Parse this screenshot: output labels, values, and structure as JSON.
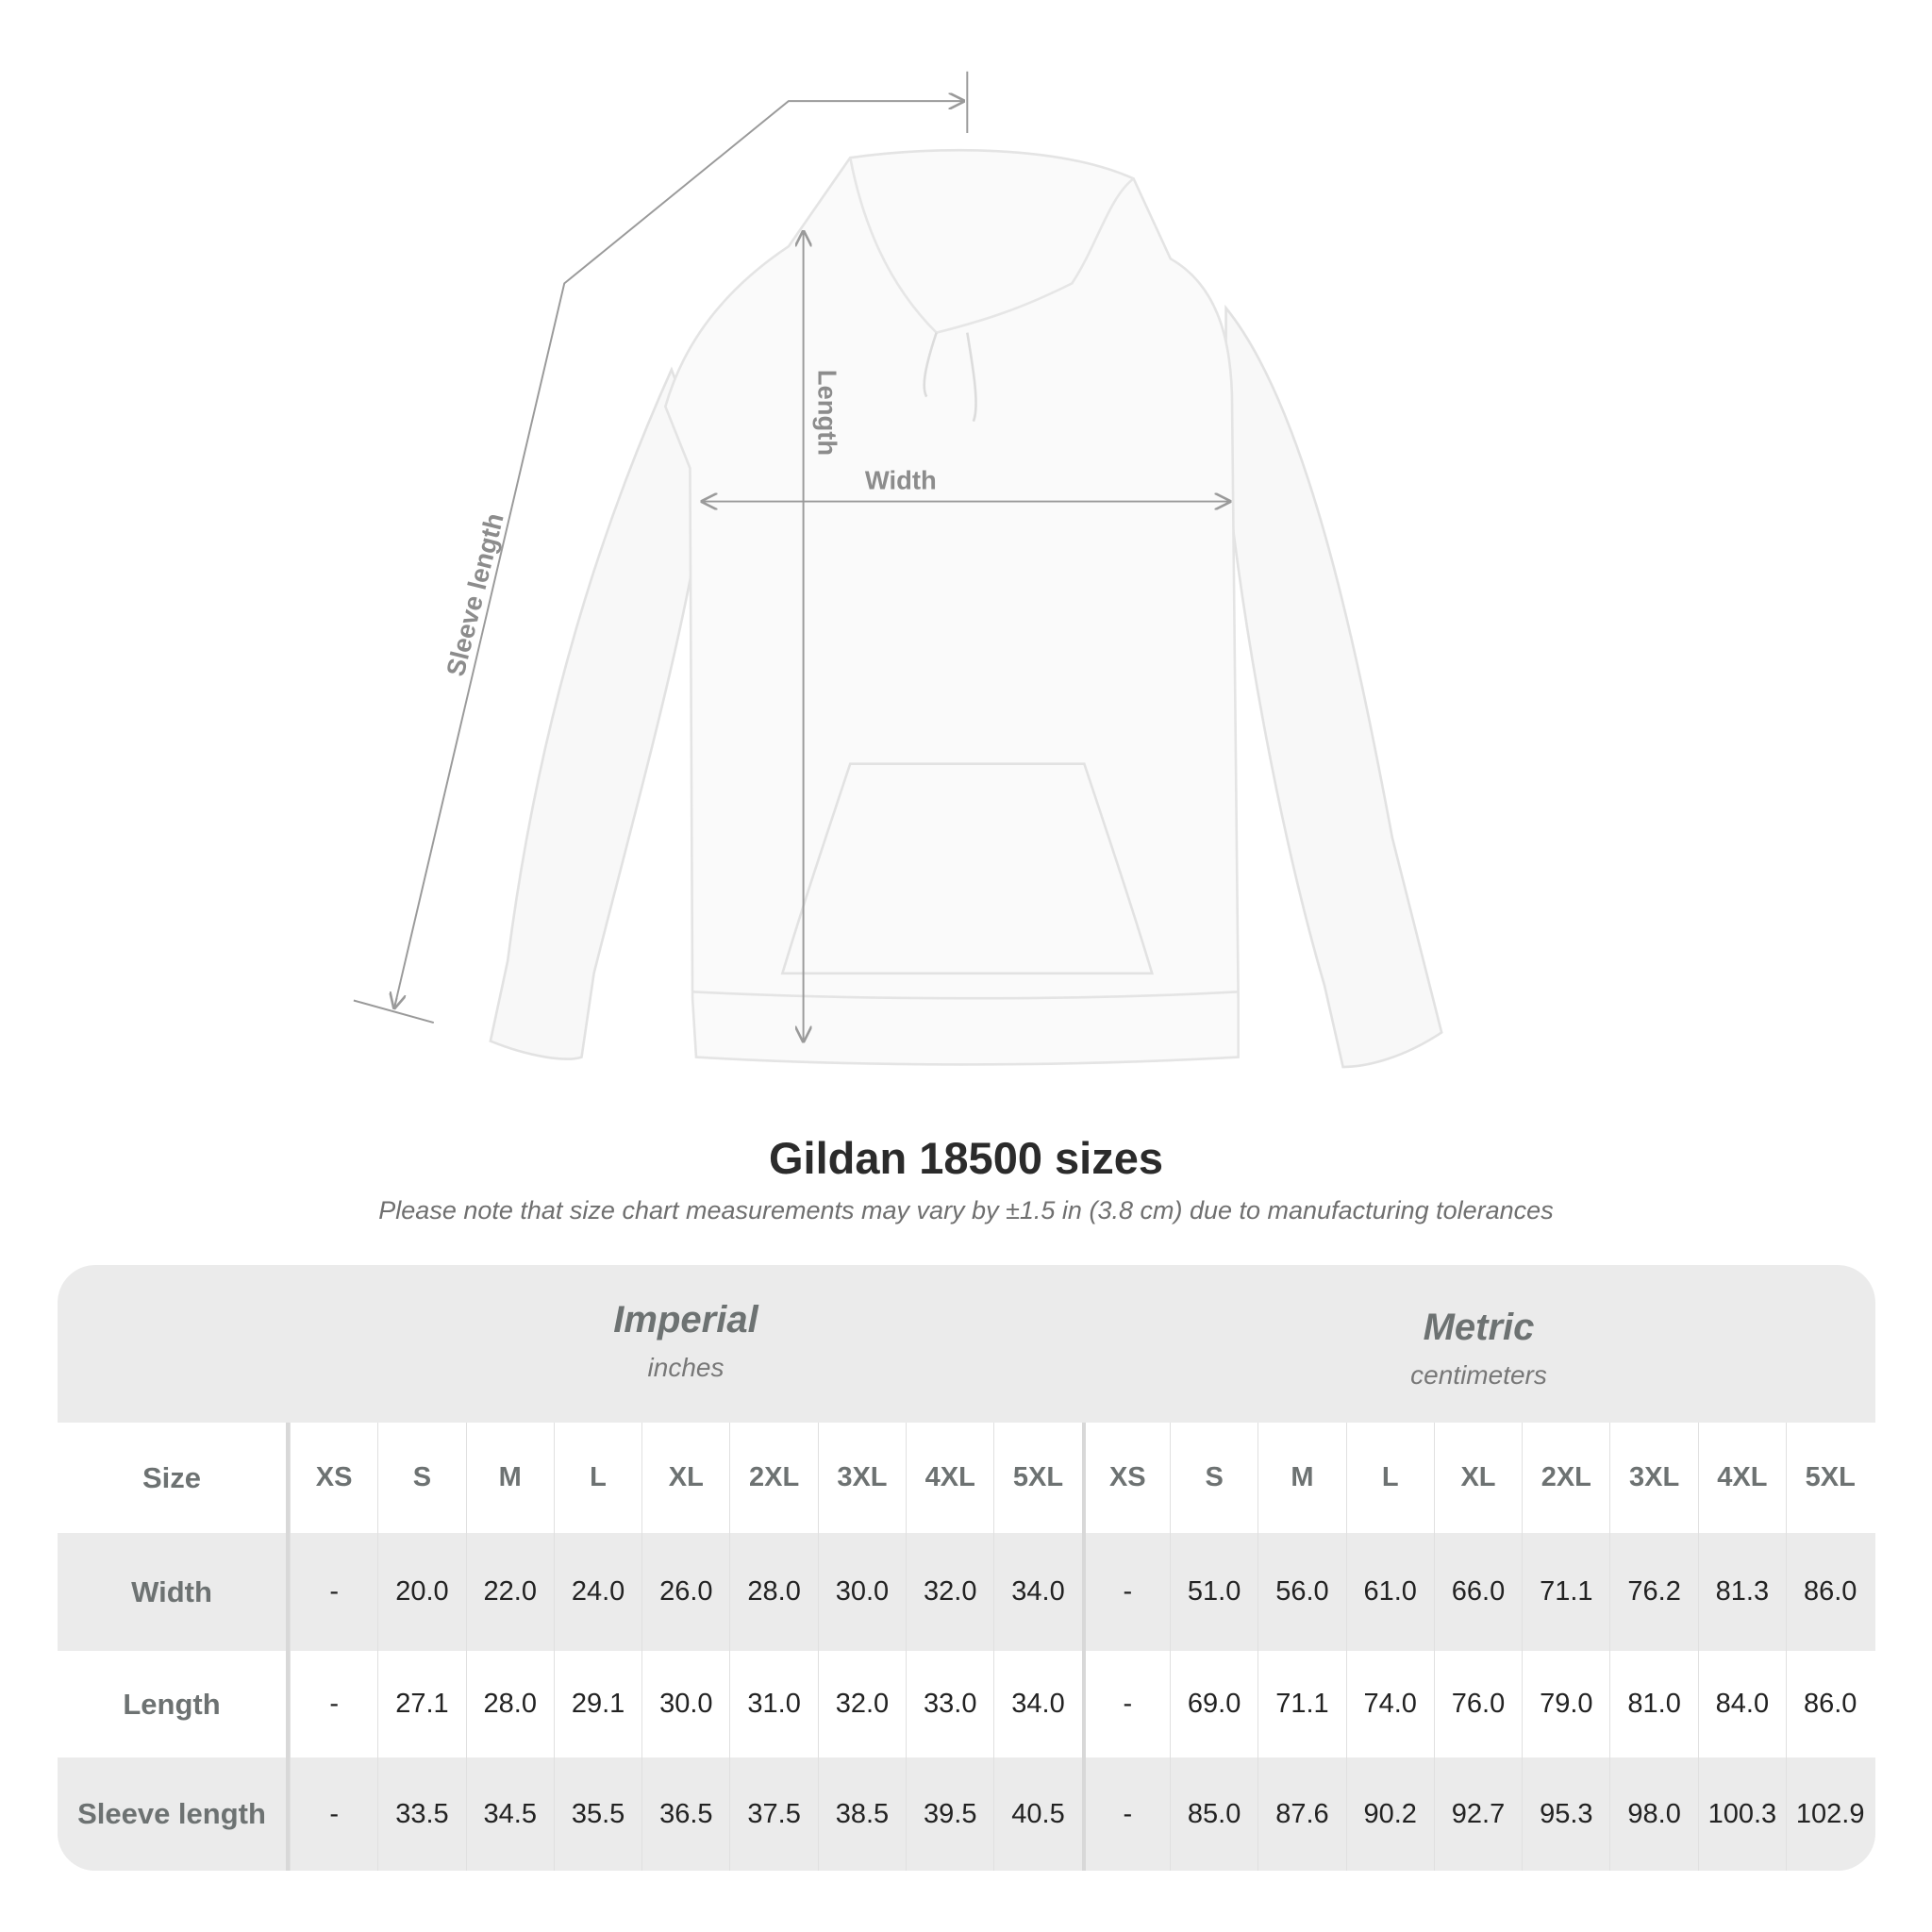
{
  "diagram": {
    "labels": {
      "sleeve": "Sleeve length",
      "length": "Length",
      "width": "Width"
    },
    "line_color": "#9a9a9a"
  },
  "title": "Gildan 18500 sizes",
  "note": "Please note that size chart measurements may vary by ±1.5 in (3.8 cm) due to manufacturing tolerances",
  "table": {
    "imperial": {
      "name": "Imperial",
      "unit": "inches"
    },
    "metric": {
      "name": "Metric",
      "unit": "centimeters"
    },
    "size_label": "Size",
    "sizes": [
      "XS",
      "S",
      "M",
      "L",
      "XL",
      "2XL",
      "3XL",
      "4XL",
      "5XL"
    ],
    "rows": [
      {
        "label": "Width",
        "imperial": [
          "-",
          "20.0",
          "22.0",
          "24.0",
          "26.0",
          "28.0",
          "30.0",
          "32.0",
          "34.0"
        ],
        "metric": [
          "-",
          "51.0",
          "56.0",
          "61.0",
          "66.0",
          "71.1",
          "76.2",
          "81.3",
          "86.0"
        ]
      },
      {
        "label": "Length",
        "imperial": [
          "-",
          "27.1",
          "28.0",
          "29.1",
          "30.0",
          "31.0",
          "32.0",
          "33.0",
          "34.0"
        ],
        "metric": [
          "-",
          "69.0",
          "71.1",
          "74.0",
          "76.0",
          "79.0",
          "81.0",
          "84.0",
          "86.0"
        ]
      },
      {
        "label": "Sleeve length",
        "imperial": [
          "-",
          "33.5",
          "34.5",
          "35.5",
          "36.5",
          "37.5",
          "38.5",
          "39.5",
          "40.5"
        ],
        "metric": [
          "-",
          "85.0",
          "87.6",
          "90.2",
          "92.7",
          "95.3",
          "98.0",
          "100.3",
          "102.9"
        ]
      }
    ]
  }
}
